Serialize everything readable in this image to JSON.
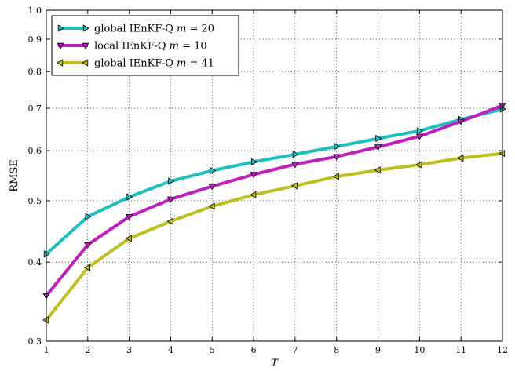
{
  "chart_data": {
    "type": "line",
    "title": "",
    "xlabel": "T",
    "ylabel": "RMSE",
    "y_scale": "log",
    "xlim": [
      1,
      12
    ],
    "ylim": [
      0.3,
      1.0
    ],
    "x_ticks": [
      "1",
      "2",
      "3",
      "4",
      "5",
      "6",
      "7",
      "8",
      "9",
      "10",
      "11",
      "12"
    ],
    "y_ticks": [
      "0.3",
      "0.4",
      "0.5",
      "0.6",
      "0.7",
      "0.8",
      "0.9",
      "1.0"
    ],
    "grid": true,
    "legend_position": "top-left",
    "x": [
      1,
      2,
      3,
      4,
      5,
      6,
      7,
      8,
      9,
      10,
      11,
      12
    ],
    "series": [
      {
        "name": "global IEnKF-Q m = 20",
        "name_parts": [
          "global IEnKF-Q ",
          "m",
          " = 20"
        ],
        "color": "#1fbfbf",
        "marker": "triangle-right",
        "values": [
          0.412,
          0.472,
          0.507,
          0.537,
          0.558,
          0.576,
          0.592,
          0.609,
          0.627,
          0.645,
          0.672,
          0.698
        ]
      },
      {
        "name": "local IEnKF-Q m = 10",
        "name_parts": [
          "local IEnKF-Q ",
          "m",
          " = 10"
        ],
        "color": "#bf1fbf",
        "marker": "triangle-down",
        "values": [
          0.354,
          0.426,
          0.472,
          0.503,
          0.527,
          0.55,
          0.571,
          0.587,
          0.608,
          0.632,
          0.667,
          0.707
        ]
      },
      {
        "name": "global IEnKF-Q m = 41",
        "name_parts": [
          "global IEnKF-Q ",
          "m",
          " = 41"
        ],
        "color": "#bfbf1f",
        "marker": "triangle-left",
        "values": [
          0.324,
          0.392,
          0.436,
          0.464,
          0.49,
          0.511,
          0.528,
          0.546,
          0.559,
          0.57,
          0.584,
          0.594
        ]
      }
    ]
  }
}
